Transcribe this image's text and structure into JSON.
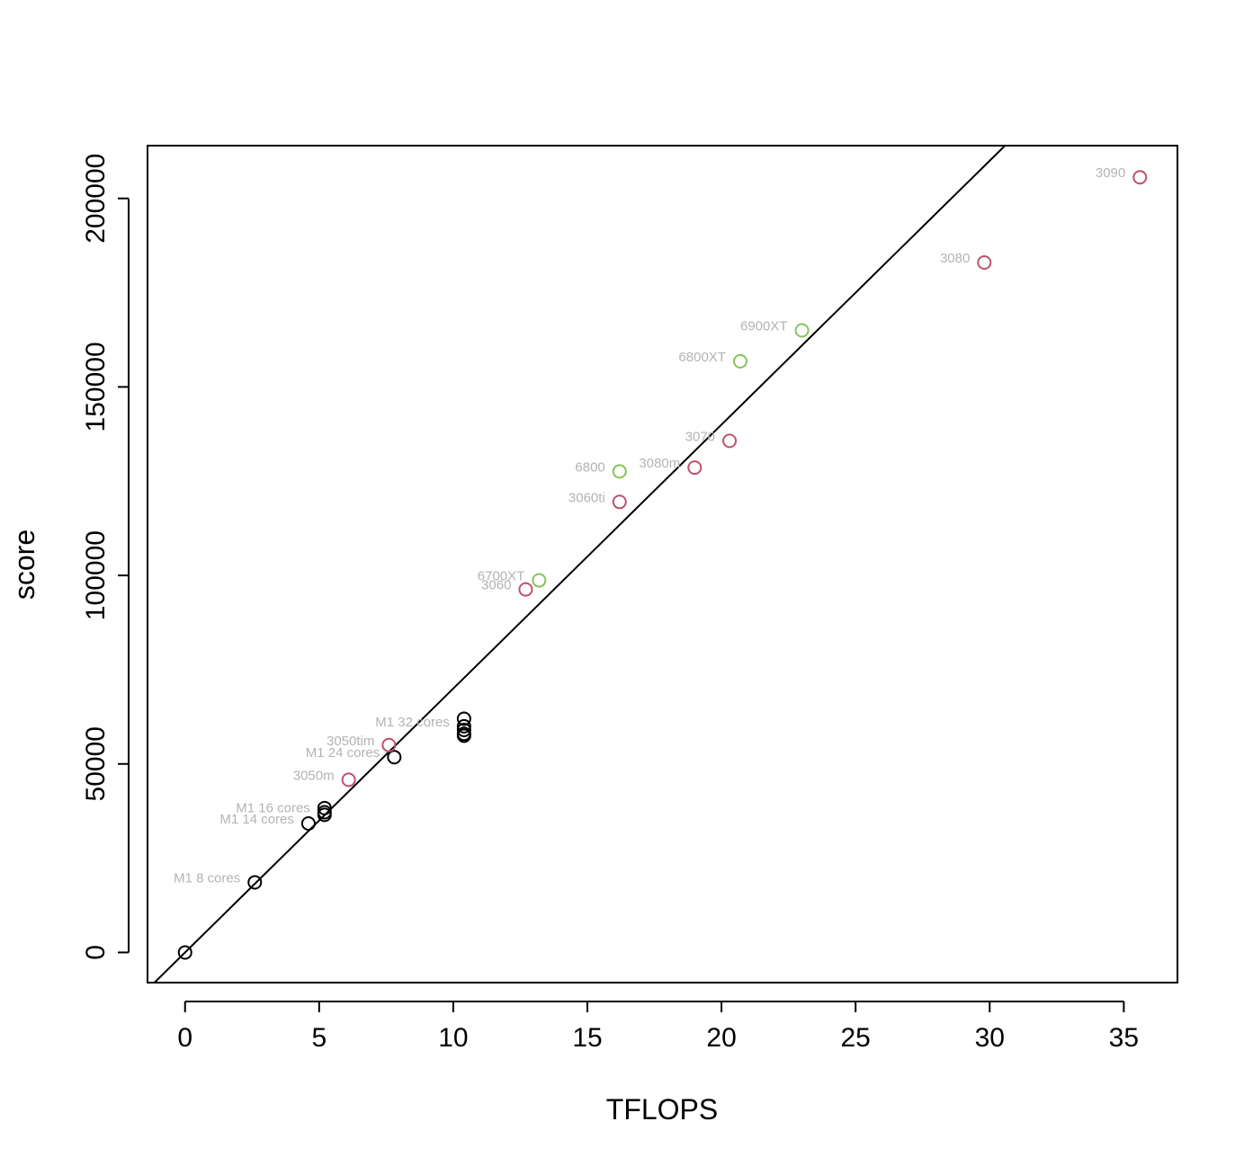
{
  "chart_data": {
    "type": "scatter",
    "title": "",
    "xlabel": "TFLOPS",
    "ylabel": "score",
    "xlim": [
      -1.4,
      37
    ],
    "ylim": [
      -8000,
      214000
    ],
    "x_ticks": [
      0,
      5,
      10,
      15,
      20,
      25,
      30,
      35
    ],
    "x_tick_labels": [
      "0",
      "5",
      "10",
      "15",
      "20",
      "25",
      "30",
      "35"
    ],
    "y_ticks": [
      0,
      50000,
      100000,
      150000,
      200000
    ],
    "y_tick_labels": [
      "0",
      "50000",
      "100000",
      "150000",
      "200000"
    ],
    "grid": false,
    "legend": "none",
    "colors": {
      "apple": "#000000",
      "nvidia": "#c0506c",
      "amd": "#86c35a",
      "label": "#b3b3b3",
      "fit": "#000000"
    },
    "fit_line": {
      "slope": 7000,
      "intercept": 0
    },
    "points": [
      {
        "x": 0,
        "y": 0,
        "group": "apple",
        "label": ""
      },
      {
        "x": 2.6,
        "y": 18600,
        "group": "apple",
        "label": "M1 8 cores"
      },
      {
        "x": 4.6,
        "y": 34200,
        "group": "apple",
        "label": "M1 14 cores"
      },
      {
        "x": 5.2,
        "y": 38300,
        "group": "apple",
        "label": ""
      },
      {
        "x": 5.2,
        "y": 37200,
        "group": "apple",
        "label": "M1 16 cores"
      },
      {
        "x": 5.2,
        "y": 36500,
        "group": "apple",
        "label": ""
      },
      {
        "x": 7.8,
        "y": 51800,
        "group": "apple",
        "label": "M1 24 cores"
      },
      {
        "x": 10.4,
        "y": 62000,
        "group": "apple",
        "label": ""
      },
      {
        "x": 10.4,
        "y": 60000,
        "group": "apple",
        "label": "M1 32 cores"
      },
      {
        "x": 10.4,
        "y": 59000,
        "group": "apple",
        "label": ""
      },
      {
        "x": 10.4,
        "y": 58000,
        "group": "apple",
        "label": ""
      },
      {
        "x": 10.4,
        "y": 57500,
        "group": "apple",
        "label": ""
      },
      {
        "x": 6.1,
        "y": 45800,
        "group": "nvidia",
        "label": "3050m"
      },
      {
        "x": 7.6,
        "y": 55000,
        "group": "nvidia",
        "label": "3050tim"
      },
      {
        "x": 12.7,
        "y": 96300,
        "group": "nvidia",
        "label": "3060"
      },
      {
        "x": 16.2,
        "y": 119500,
        "group": "nvidia",
        "label": "3060ti"
      },
      {
        "x": 19.0,
        "y": 128600,
        "group": "nvidia",
        "label": "3080m"
      },
      {
        "x": 20.3,
        "y": 135700,
        "group": "nvidia",
        "label": "3070"
      },
      {
        "x": 29.8,
        "y": 183000,
        "group": "nvidia",
        "label": "3080"
      },
      {
        "x": 35.6,
        "y": 205600,
        "group": "nvidia",
        "label": "3090"
      },
      {
        "x": 13.2,
        "y": 98700,
        "group": "amd",
        "label": "6700XT"
      },
      {
        "x": 16.2,
        "y": 127600,
        "group": "amd",
        "label": "6800"
      },
      {
        "x": 20.7,
        "y": 156800,
        "group": "amd",
        "label": "6800XT"
      },
      {
        "x": 23.0,
        "y": 165000,
        "group": "amd",
        "label": "6900XT"
      }
    ]
  }
}
